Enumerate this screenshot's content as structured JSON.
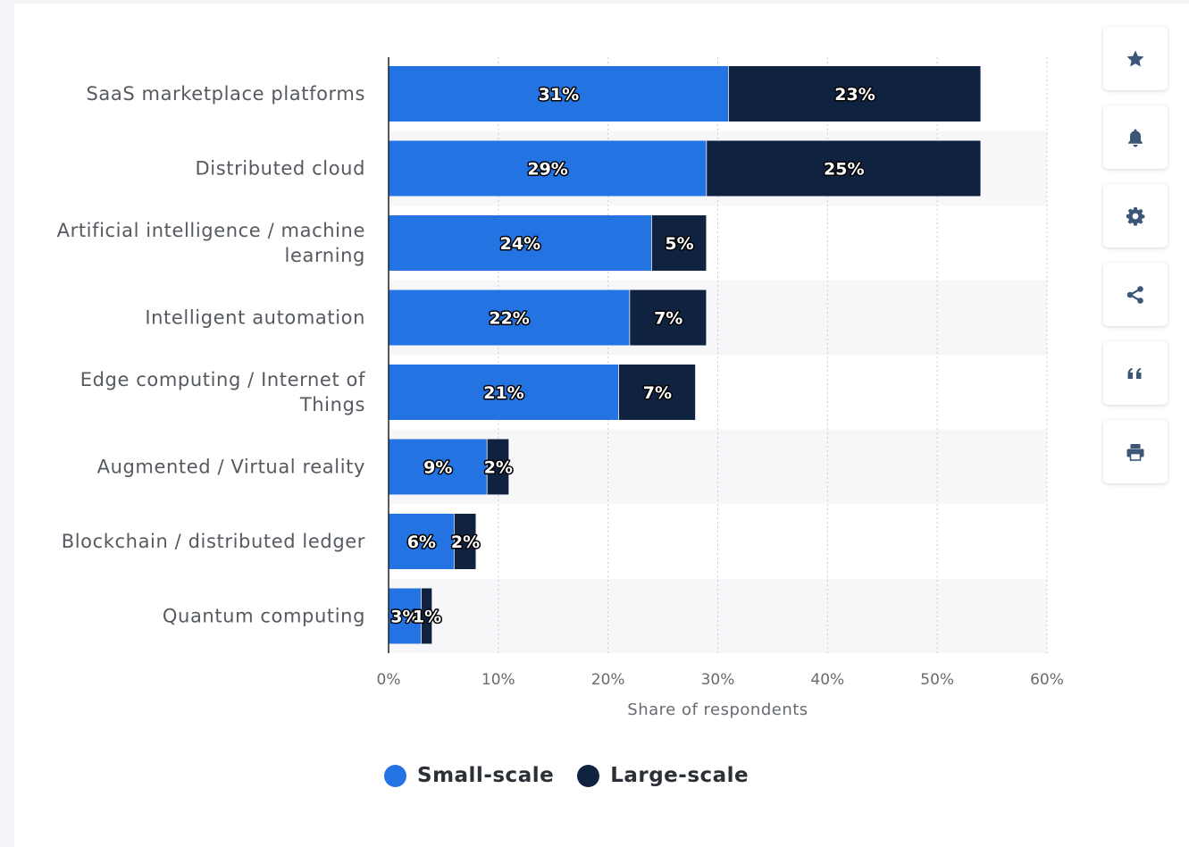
{
  "chart_data": {
    "type": "bar",
    "orientation": "horizontal",
    "stacked": true,
    "categories": [
      "SaaS marketplace platforms",
      "Distributed cloud",
      "Artificial intelligence / machine learning",
      "Intelligent automation",
      "Edge computing / Internet of Things",
      "Augmented / Virtual reality",
      "Blockchain / distributed ledger",
      "Quantum computing"
    ],
    "category_lines": [
      [
        "SaaS marketplace platforms"
      ],
      [
        "Distributed cloud"
      ],
      [
        "Artificial intelligence / machine",
        "learning"
      ],
      [
        "Intelligent automation"
      ],
      [
        "Edge computing / Internet of",
        "Things"
      ],
      [
        "Augmented / Virtual reality"
      ],
      [
        "Blockchain / distributed ledger"
      ],
      [
        "Quantum computing"
      ]
    ],
    "series": [
      {
        "name": "Small-scale",
        "color": "#2473e3",
        "values": [
          31,
          29,
          24,
          22,
          21,
          9,
          6,
          3
        ]
      },
      {
        "name": "Large-scale",
        "color": "#0f2341",
        "values": [
          23,
          25,
          5,
          7,
          7,
          2,
          2,
          1
        ]
      }
    ],
    "xlabel": "Share of respondents",
    "ylabel": "",
    "xlim": [
      0,
      60
    ],
    "xticks": [
      0,
      10,
      20,
      30,
      40,
      50,
      60
    ],
    "tick_suffix": "%",
    "grid": true,
    "legend_position": "bottom"
  },
  "legend": {
    "items": [
      {
        "label": "Small-scale",
        "color": "#2473e3"
      },
      {
        "label": "Large-scale",
        "color": "#0f2341"
      }
    ]
  },
  "toolbar": {
    "buttons": [
      {
        "icon": "star-icon"
      },
      {
        "icon": "bell-icon"
      },
      {
        "icon": "gear-icon"
      },
      {
        "icon": "share-icon"
      },
      {
        "icon": "quote-icon"
      },
      {
        "icon": "print-icon"
      }
    ]
  }
}
